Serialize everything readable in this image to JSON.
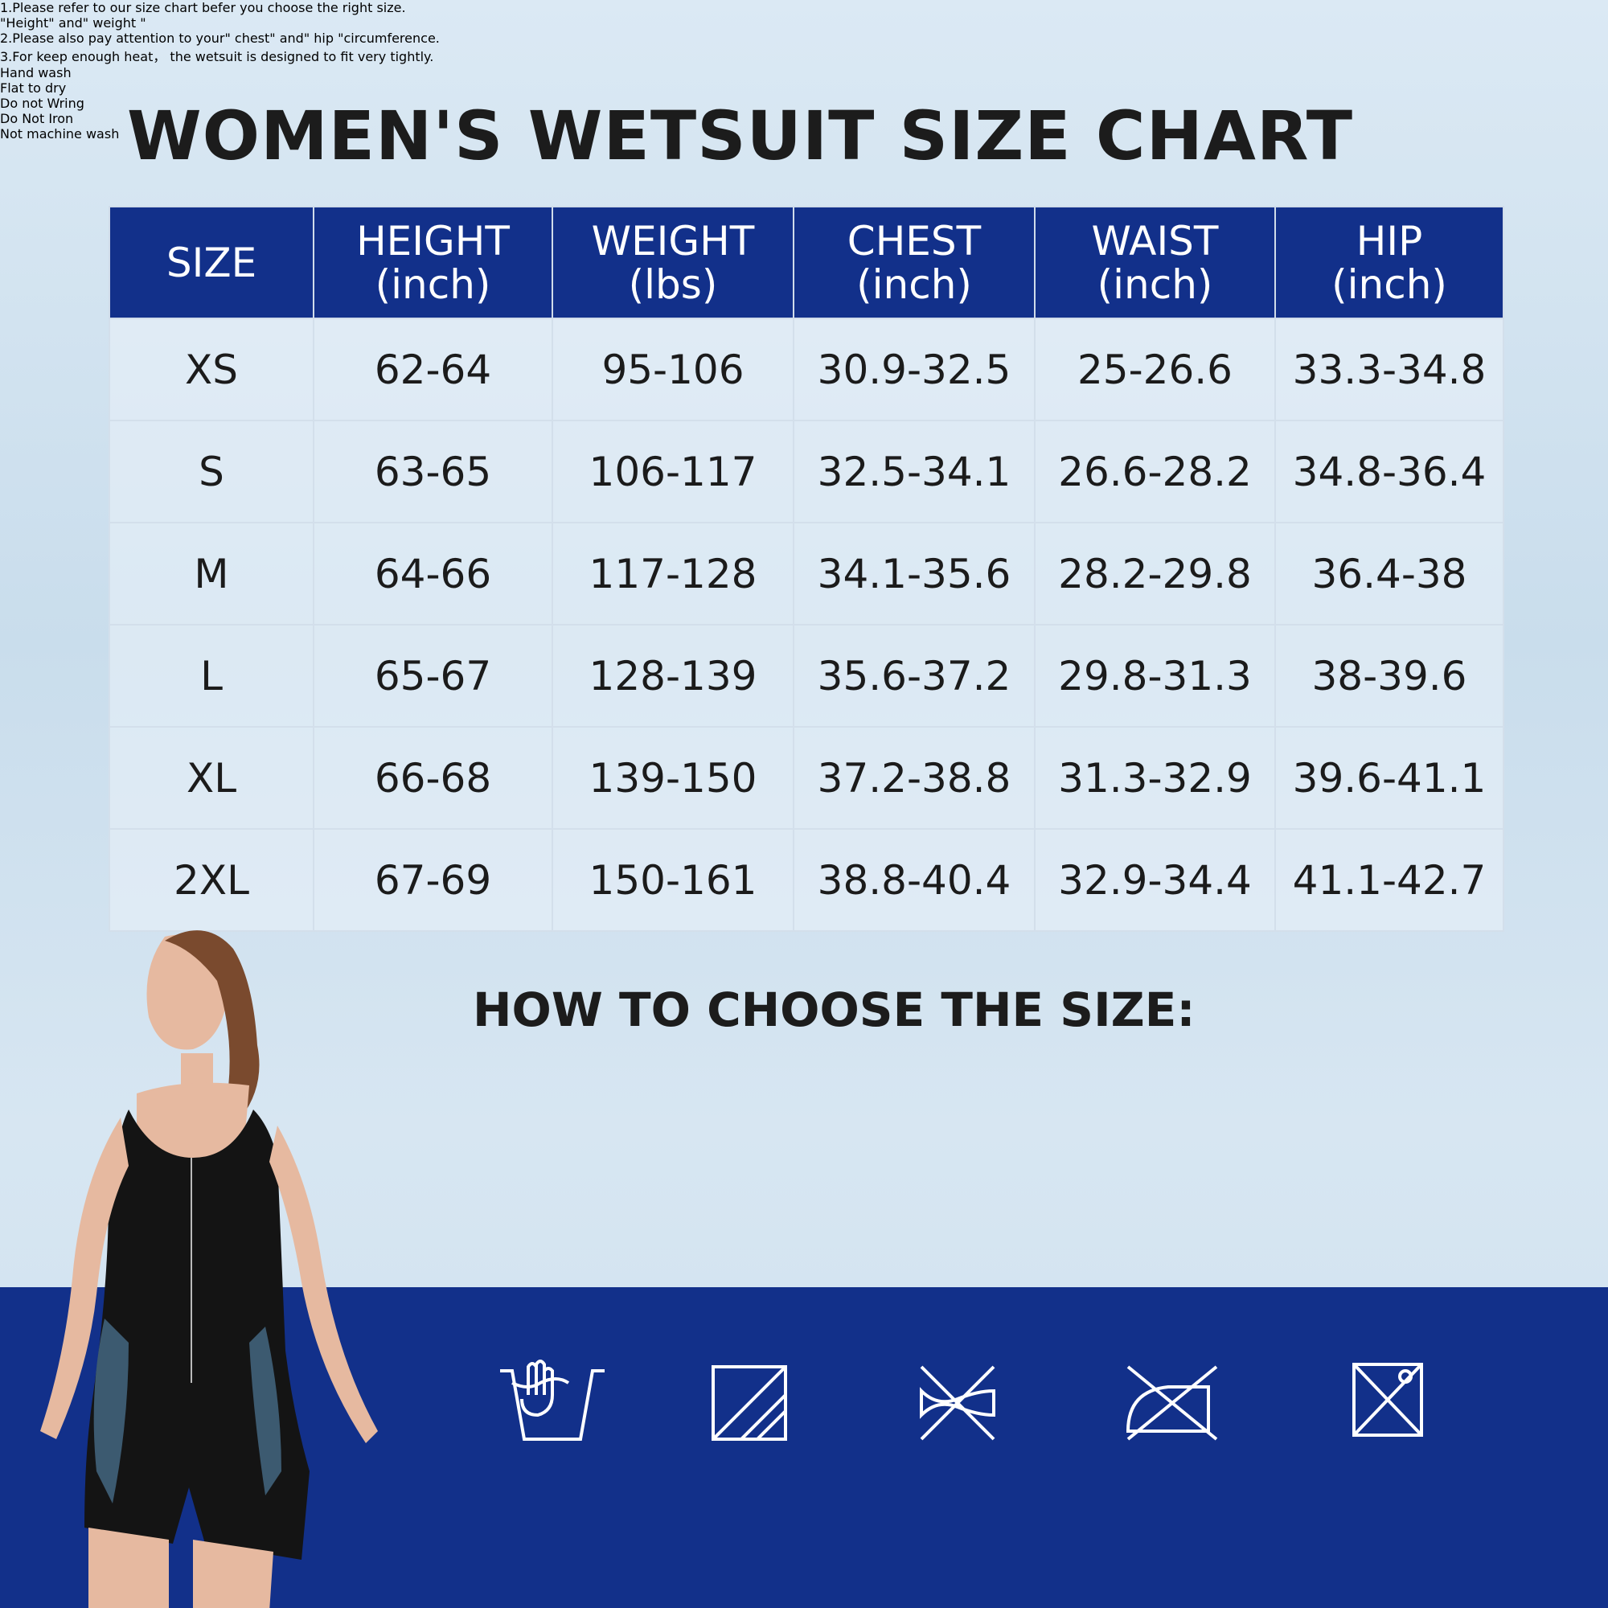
{
  "title": "WOMEN'S WETSUIT SIZE CHART",
  "table": {
    "headers": [
      {
        "label": "SIZE"
      },
      {
        "label": "HEIGHT",
        "unit": "(inch)"
      },
      {
        "label": "WEIGHT",
        "unit": "(lbs)"
      },
      {
        "label": "CHEST",
        "unit": "(inch)"
      },
      {
        "label": "WAIST",
        "unit": "(inch)"
      },
      {
        "label": "HIP",
        "unit": "(inch)"
      }
    ],
    "rows": [
      [
        "XS",
        "62-64",
        "95-106",
        "30.9-32.5",
        "25-26.6",
        "33.3-34.8"
      ],
      [
        "S",
        "63-65",
        "106-117",
        "32.5-34.1",
        "26.6-28.2",
        "34.8-36.4"
      ],
      [
        "M",
        "64-66",
        "117-128",
        "34.1-35.6",
        "28.2-29.8",
        "36.4-38"
      ],
      [
        "L",
        "65-67",
        "128-139",
        "35.6-37.2",
        "29.8-31.3",
        "38-39.6"
      ],
      [
        "XL",
        "66-68",
        "139-150",
        "37.2-38.8",
        "31.3-32.9",
        "39.6-41.1"
      ],
      [
        "2XL",
        "67-69",
        "150-161",
        "38.8-40.4",
        "32.9-34.4",
        "41.1-42.7"
      ]
    ]
  },
  "guide": {
    "title": "HOW TO CHOOSE THE SIZE:",
    "lines": [
      "1.Please refer to our size chart befer you choose the right size.",
      "\"Height\" and\" weight \"",
      "2.Please also pay attention to your\" chest\" and\" hip \"circumference.",
      "3.For keep enough heat， the wetsuit is designed to fit very tightly."
    ]
  },
  "care": [
    "Hand wash",
    "Flat to dry",
    "Do not Wring",
    "Do Not Iron",
    "Not machine wash"
  ]
}
